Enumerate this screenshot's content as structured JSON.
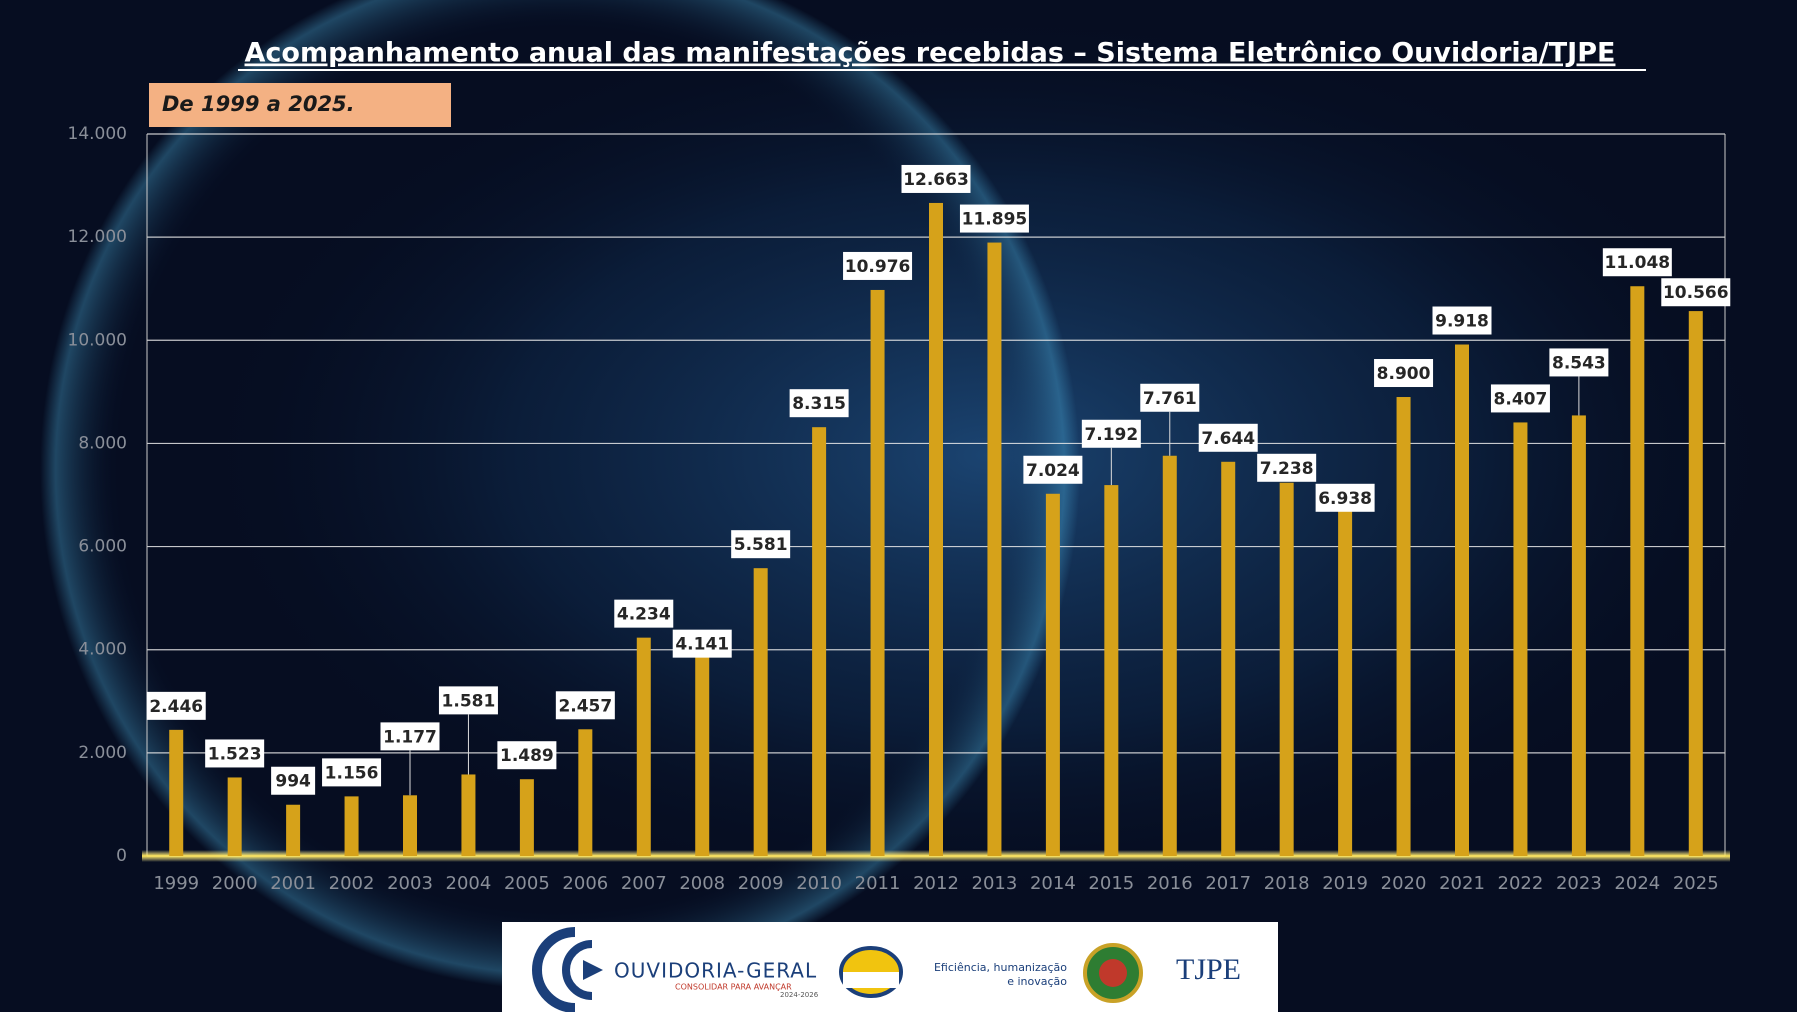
{
  "chart_data": {
    "type": "bar",
    "title": "Acompanhamento anual das manifestações recebidas – Sistema Eletrônico Ouvidoria/TJPE",
    "subtitle": "De 1999 a 2025.",
    "categories": [
      "1999",
      "2000",
      "2001",
      "2002",
      "2003",
      "2004",
      "2005",
      "2006",
      "2007",
      "2008",
      "2009",
      "2010",
      "2011",
      "2012",
      "2013",
      "2014",
      "2015",
      "2016",
      "2017",
      "2018",
      "2019",
      "2020",
      "2021",
      "2022",
      "2023",
      "2024",
      "2025"
    ],
    "values": [
      2446,
      1523,
      994,
      1156,
      1177,
      1581,
      1489,
      2457,
      4234,
      4141,
      5581,
      8315,
      10976,
      12663,
      11895,
      7024,
      7192,
      7761,
      7644,
      7238,
      6938,
      8900,
      9918,
      8407,
      8543,
      11048,
      10566
    ],
    "value_labels": [
      "2.446",
      "1.523",
      "994",
      "1.156",
      "1.177",
      "1.581",
      "1.489",
      "2.457",
      "4.234",
      "4.141",
      "5.581",
      "8.315",
      "10.976",
      "12.663",
      "11.895",
      "7.024",
      "7.192",
      "7.761",
      "7.644",
      "7.238",
      "6.938",
      "8.900",
      "9.918",
      "8.407",
      "8.543",
      "11.048",
      "10.566"
    ],
    "color": "#d6a21a",
    "ylim": [
      0,
      14000
    ],
    "yticks": [
      0,
      {
        "value": 2000,
        "label": "2.000"
      },
      {
        "value": 4000,
        "label": "4.000"
      },
      {
        "value": 6000,
        "label": "6.000"
      },
      {
        "value": 8000,
        "label": "8.000"
      },
      {
        "value": 10000,
        "label": "10.000"
      },
      {
        "value": 12000,
        "label": "12.000"
      },
      {
        "value": 14000,
        "label": "14.000"
      }
    ],
    "grid": true
  },
  "footer": {
    "brand": "OUVIDORIA-GERAL",
    "slogan": "CONSOLIDAR PARA AVANÇAR",
    "period": "2024-2026",
    "motto_line1": "Eficiência, humanização",
    "motto_line2": "e inovação",
    "court": "TJPE"
  }
}
